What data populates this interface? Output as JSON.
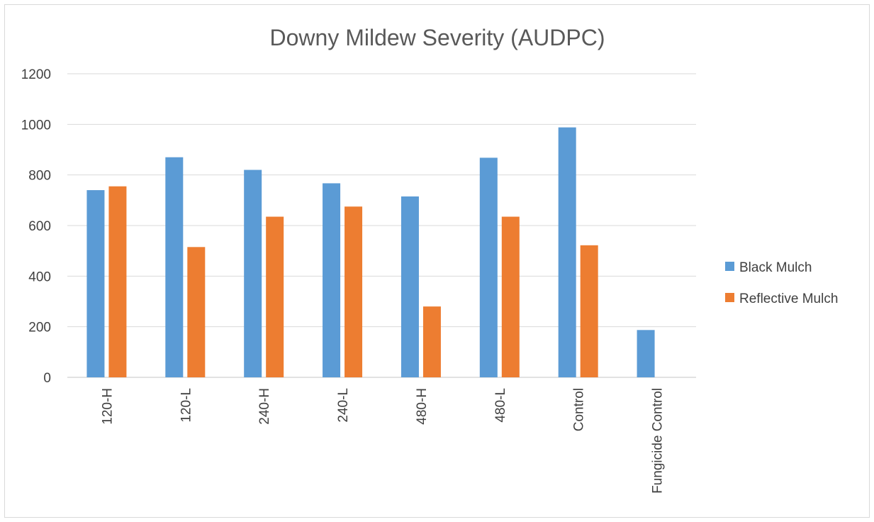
{
  "chart_data": {
    "type": "bar",
    "title": "Downy Mildew Severity (AUDPC)",
    "xlabel": "",
    "ylabel": "",
    "ylim": [
      0,
      1200
    ],
    "y_ticks": [
      0,
      200,
      400,
      600,
      800,
      1000,
      1200
    ],
    "grid": true,
    "legend_position": "right",
    "categories": [
      "120-H",
      "120-L",
      "240-H",
      "240-L",
      "480-H",
      "480-L",
      "Control",
      "Fungicide Control"
    ],
    "series": [
      {
        "name": "Black Mulch",
        "color": "#5b9bd5",
        "values": [
          740,
          870,
          820,
          767,
          715,
          868,
          988,
          187
        ]
      },
      {
        "name": "Reflective Mulch",
        "color": "#ed7d31",
        "values": [
          755,
          515,
          635,
          675,
          280,
          635,
          522,
          null
        ]
      }
    ]
  }
}
